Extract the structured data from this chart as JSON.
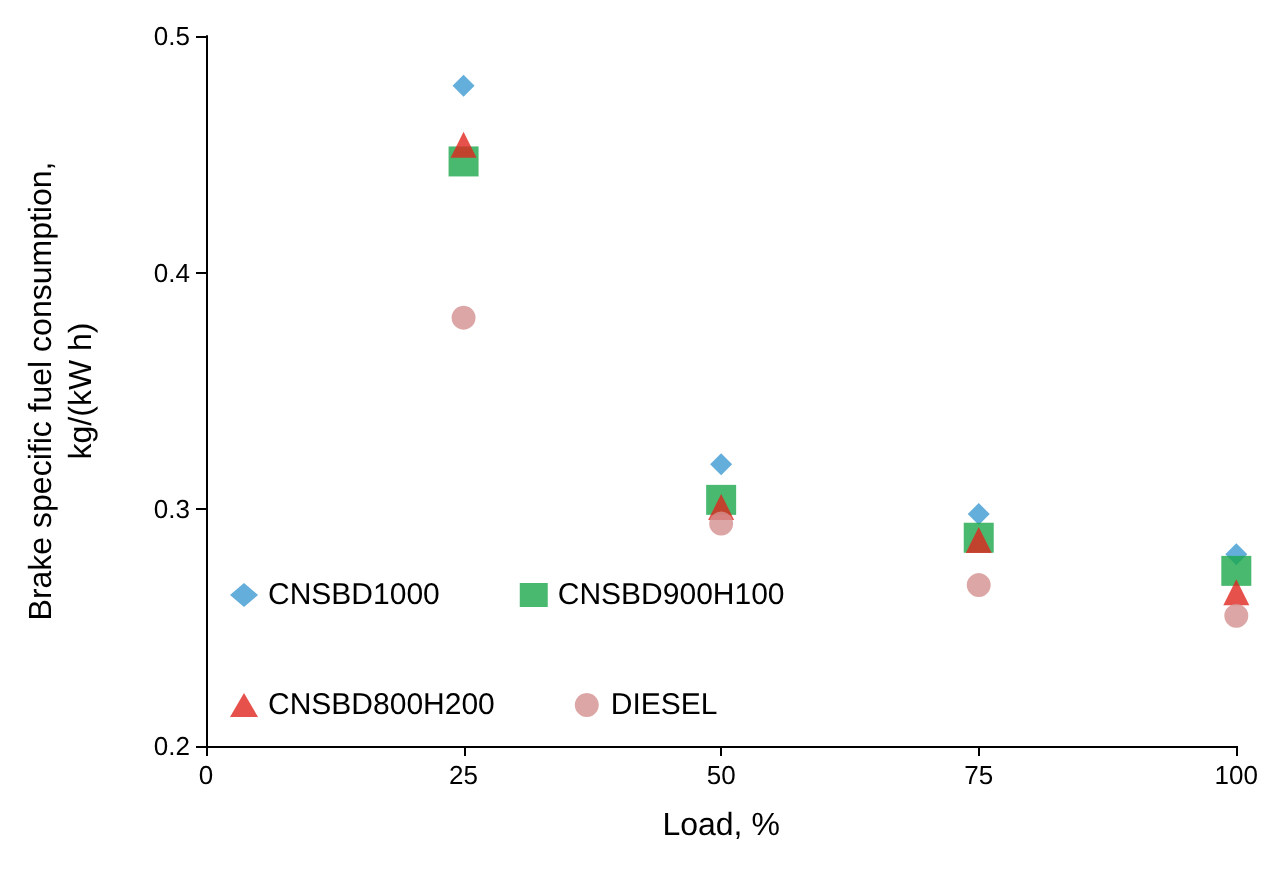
{
  "chart_data": {
    "type": "scatter",
    "xlabel": "Load, %",
    "ylabel": "Brake specific fuel consumption,\nkg/(kW h)",
    "x": [
      25,
      50,
      75,
      100
    ],
    "xlim": [
      0,
      100
    ],
    "xticks": [
      0,
      25,
      50,
      75,
      100
    ],
    "ylim": [
      0.2,
      0.5
    ],
    "yticks": [
      0.2,
      0.3,
      0.4,
      0.5
    ],
    "grid": false,
    "legend": "bottom left",
    "series": [
      {
        "name": "CNSBD1000",
        "color": "#3c9ad2",
        "marker": "diamond",
        "values": [
          0.479,
          0.319,
          0.298,
          0.281
        ]
      },
      {
        "name": "CNSBD900H100",
        "color": "#1aa84a",
        "marker": "square",
        "values": [
          0.447,
          0.304,
          0.288,
          0.274
        ]
      },
      {
        "name": "CNSBD800H200",
        "color": "#e0261e",
        "marker": "triangle",
        "values": [
          0.454,
          0.301,
          0.287,
          0.265
        ]
      },
      {
        "name": "DIESEL",
        "color": "#d49090",
        "marker": "circle",
        "values": [
          0.381,
          0.294,
          0.268,
          0.255
        ]
      }
    ]
  }
}
